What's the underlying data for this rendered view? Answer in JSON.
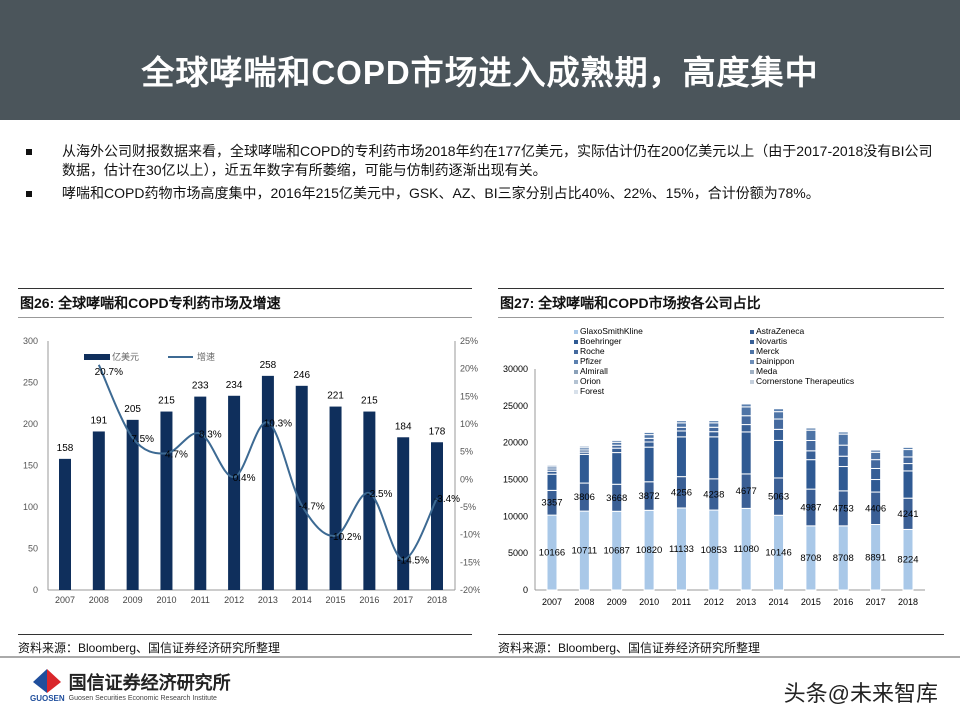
{
  "header": {
    "title": "全球哮喘和COPD市场进入成熟期，高度集中"
  },
  "bullets": [
    "从海外公司财报数据来看，全球哮喘和COPD的专利药市场2018年约在177亿美元，实际估计仍在200亿美元以上（由于2017-2018没有BI公司数据，估计在30亿以上），近五年数字有所萎缩，可能与仿制药逐渐出现有关。",
    "哮喘和COPD药物市场高度集中，2016年215亿美元中，GSK、AZ、BI三家分别占比40%、22%、15%，合计份额为78%。"
  ],
  "panels": {
    "left_title": "图26: 全球哮喘和COPD专利药市场及增速",
    "right_title": "图27: 全球哮喘和COPD市场按各公司占比",
    "left_source": "资料来源：Bloomberg、国信证券经济研究所整理",
    "right_source": "资料来源：Bloomberg、国信证券经济研究所整理"
  },
  "footer": {
    "logo_cn": "国信证券经济研究所",
    "logo_en": "Guosen Securities Economic Research Institute",
    "logo_mark": "GUOSEN",
    "watermark": "头条@未来智库"
  },
  "chart_data": [
    {
      "type": "bar+line",
      "categories": [
        "2007",
        "2008",
        "2009",
        "2010",
        "2011",
        "2012",
        "2013",
        "2014",
        "2015",
        "2016",
        "2017",
        "2018"
      ],
      "series": [
        {
          "name": "亿美元",
          "type": "bar",
          "axis": "left",
          "values": [
            158,
            191,
            205,
            215,
            233,
            234,
            258,
            246,
            221,
            215,
            184,
            178
          ],
          "color": "#0f2f5c"
        },
        {
          "name": "增速",
          "type": "line",
          "axis": "right",
          "values": [
            null,
            20.7,
            7.5,
            4.7,
            8.3,
            0.4,
            10.3,
            -4.7,
            -10.2,
            -2.5,
            -14.5,
            -3.4
          ],
          "labels": [
            "",
            "20.7%",
            "7.5%",
            "4.7%",
            "8.3%",
            "0.4%",
            "10.3%",
            "-4.7%",
            "-10.2%",
            "-2.5%",
            "-14.5%",
            "-3.4%"
          ],
          "color": "#3d6a93"
        }
      ],
      "ylim": [
        0,
        300
      ],
      "yticks": [
        "0",
        "50",
        "100",
        "150",
        "200",
        "250",
        "300"
      ],
      "y2lim": [
        -20,
        25
      ],
      "y2ticks": [
        "-20%",
        "-15%",
        "-10%",
        "-5%",
        "0%",
        "5%",
        "10%",
        "15%",
        "20%",
        "25%"
      ],
      "legend": "top-left"
    },
    {
      "type": "stacked-bar",
      "categories": [
        "2007",
        "2008",
        "2009",
        "2010",
        "2011",
        "2012",
        "2013",
        "2014",
        "2015",
        "2016",
        "2017",
        "2018"
      ],
      "legend_entries": [
        "GlaxoSmithKline",
        "AstraZeneca",
        "Boehringer",
        "Novartis",
        "Roche",
        "Merck",
        "Pfizer",
        "Dainippon",
        "Almirall",
        "Meda",
        "Orion",
        "Cornerstone Therapeutics",
        "Forest"
      ],
      "series": [
        {
          "name": "GlaxoSmithKline",
          "values": [
            10166,
            10711,
            10687,
            10820,
            11133,
            10853,
            11080,
            10146,
            8708,
            8708,
            8891,
            8224
          ],
          "labeled": true,
          "color": "#a9c8e8"
        },
        {
          "name": "AstraZeneca",
          "values": [
            3357,
            3806,
            3668,
            3872,
            4256,
            4238,
            4677,
            5063,
            4987,
            4753,
            4406,
            4241
          ],
          "labeled": true,
          "color": "#3a5f95"
        },
        {
          "name": "Boehringer",
          "values": [
            2200,
            3900,
            4300,
            4700,
            5400,
            5700,
            5700,
            5100,
            4000,
            3300,
            1700,
            3700
          ],
          "color": "#2f5a93"
        },
        {
          "name": "Novartis",
          "values": [
            400,
            300,
            600,
            700,
            800,
            700,
            1000,
            1500,
            1200,
            1400,
            1500,
            1000
          ],
          "color": "#375f96"
        },
        {
          "name": "Roche",
          "values": [
            300,
            300,
            400,
            500,
            500,
            600,
            1200,
            1400,
            1400,
            1500,
            1200,
            900
          ],
          "color": "#44699e"
        },
        {
          "name": "Merck",
          "values": [
            300,
            300,
            400,
            500,
            600,
            600,
            1200,
            1000,
            1400,
            1500,
            1000,
            1000
          ],
          "color": "#4e74a6"
        },
        {
          "name": "Pfizer",
          "values": [
            200,
            200,
            250,
            300,
            300,
            300,
            400,
            400,
            300,
            300,
            300,
            300
          ],
          "color": "#5b80af"
        }
      ],
      "ylim": [
        0,
        30000
      ],
      "yticks": [
        "0",
        "5000",
        "10000",
        "15000",
        "20000",
        "25000",
        "30000"
      ],
      "legend": "top"
    }
  ]
}
